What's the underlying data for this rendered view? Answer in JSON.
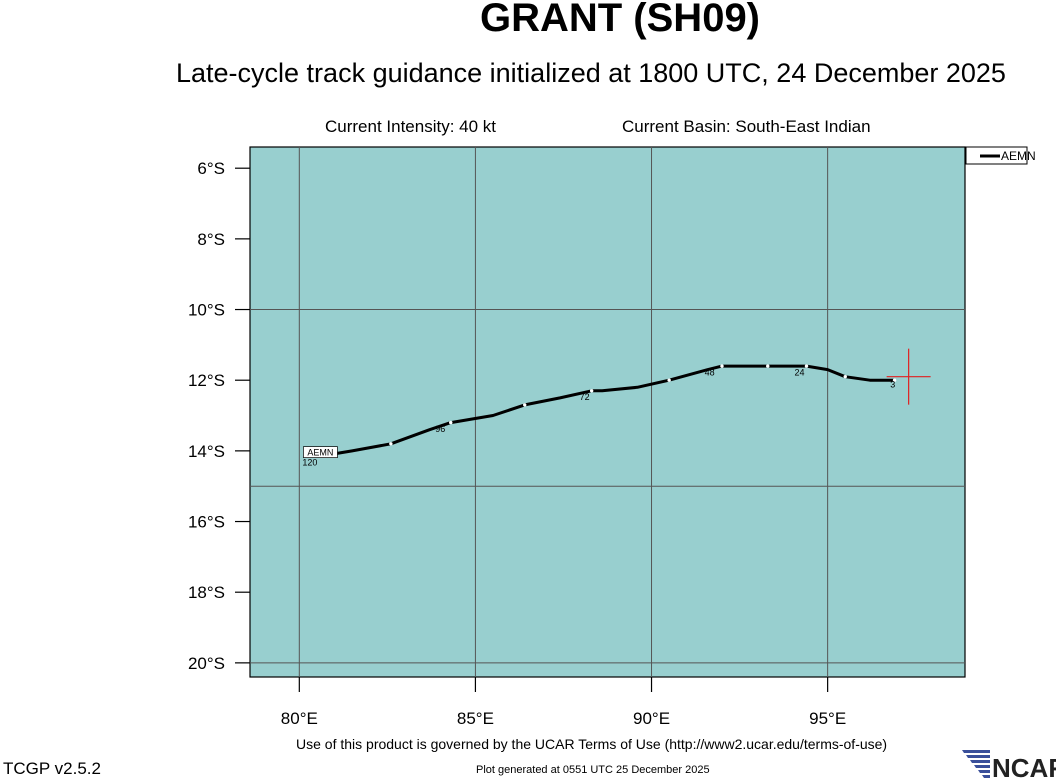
{
  "header": {
    "title": "GRANT (SH09)",
    "subtitle": "Late-cycle track guidance initialized at 1800 UTC, 24 December 2025",
    "current_intensity": "Current Intensity: 40 kt",
    "current_basin": "Current Basin: South-East Indian"
  },
  "footer": {
    "terms": "Use of this product is governed by the UCAR Terms of Use (http://www2.ucar.edu/terms-of-use)",
    "version": "TCGP v2.5.2",
    "generated": "Plot generated at 0551 UTC   25 December 2025",
    "logo_text": "NCAR"
  },
  "colors": {
    "ocean": "#98cfcf",
    "grid": "#555555",
    "track": "#000000",
    "current_position": "#e02020",
    "logo_stripes": "#3a4f9a"
  },
  "map": {
    "lon_range": [
      78.6,
      98.9
    ],
    "lat_range": [
      -20.4,
      -5.4
    ],
    "lon_ticks": [
      "80°E",
      "85°E",
      "90°E",
      "95°E"
    ],
    "lon_tick_values": [
      80,
      85,
      90,
      95
    ],
    "lat_ticks": [
      "6°S",
      "8°S",
      "10°S",
      "12°S",
      "14°S",
      "16°S",
      "18°S",
      "20°S"
    ],
    "lat_tick_values": [
      -6,
      -8,
      -10,
      -12,
      -14,
      -16,
      -18,
      -20
    ],
    "grid_lon": [
      80,
      85,
      90,
      95
    ],
    "grid_lat": [
      -10,
      -15,
      -20
    ]
  },
  "chart_data": {
    "type": "track",
    "legend": "AEMN",
    "current_position": {
      "lon": 97.3,
      "lat": -11.9
    },
    "track": [
      {
        "lon": 96.9,
        "lat": -12.0
      },
      {
        "lon": 96.7,
        "lat": -12.0
      },
      {
        "lon": 96.2,
        "lat": -12.0
      },
      {
        "lon": 95.5,
        "lat": -11.9
      },
      {
        "lon": 95.0,
        "lat": -11.7
      },
      {
        "lon": 94.4,
        "lat": -11.6
      },
      {
        "lon": 93.3,
        "lat": -11.6
      },
      {
        "lon": 92.0,
        "lat": -11.6
      },
      {
        "lon": 91.6,
        "lat": -11.7
      },
      {
        "lon": 90.5,
        "lat": -12.0
      },
      {
        "lon": 89.6,
        "lat": -12.2
      },
      {
        "lon": 88.6,
        "lat": -12.3
      },
      {
        "lon": 88.3,
        "lat": -12.3
      },
      {
        "lon": 87.4,
        "lat": -12.5
      },
      {
        "lon": 86.4,
        "lat": -12.7
      },
      {
        "lon": 85.5,
        "lat": -13.0
      },
      {
        "lon": 84.3,
        "lat": -13.2
      },
      {
        "lon": 83.7,
        "lat": -13.4
      },
      {
        "lon": 82.6,
        "lat": -13.8
      },
      {
        "lon": 81.5,
        "lat": -14.0
      },
      {
        "lon": 80.9,
        "lat": -14.1
      }
    ],
    "dots": [
      {
        "lon": 96.9,
        "lat": -12.0
      },
      {
        "lon": 95.5,
        "lat": -11.9
      },
      {
        "lon": 94.4,
        "lat": -11.6
      },
      {
        "lon": 93.3,
        "lat": -11.6
      },
      {
        "lon": 92.0,
        "lat": -11.6
      },
      {
        "lon": 90.5,
        "lat": -12.0
      },
      {
        "lon": 88.3,
        "lat": -12.3
      },
      {
        "lon": 86.4,
        "lat": -12.7
      },
      {
        "lon": 84.3,
        "lat": -13.2
      },
      {
        "lon": 82.6,
        "lat": -13.8
      }
    ],
    "hour_labels": [
      {
        "text": "3",
        "lon": 96.85,
        "lat": -12.1
      },
      {
        "text": "24",
        "lon": 94.2,
        "lat": -11.75
      },
      {
        "text": "48",
        "lon": 91.65,
        "lat": -11.75
      },
      {
        "text": "72",
        "lon": 88.1,
        "lat": -12.45
      },
      {
        "text": "96",
        "lon": 84.0,
        "lat": -13.35
      },
      {
        "text": "120",
        "lon": 80.3,
        "lat": -14.3
      }
    ],
    "model_label": {
      "text": "AEMN",
      "lon": 80.6,
      "lat": -14.05
    }
  }
}
